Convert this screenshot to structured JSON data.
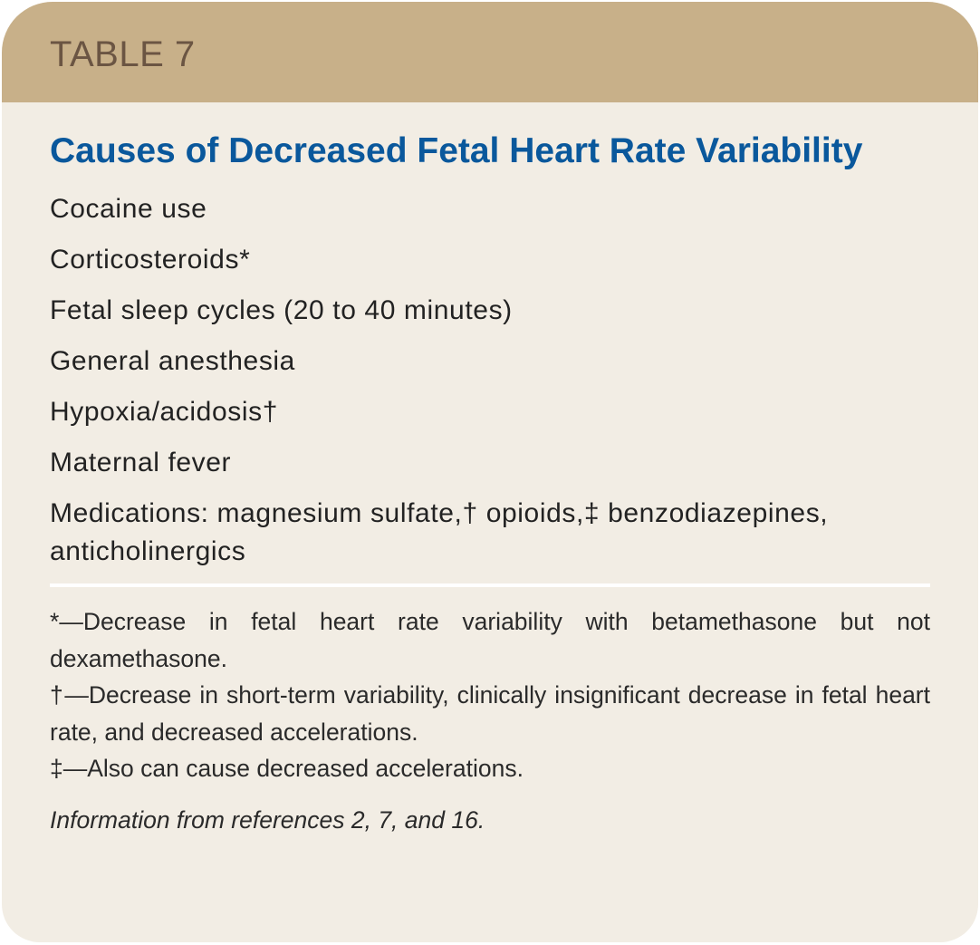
{
  "header": {
    "label": "TABLE 7"
  },
  "title": "Causes of Decreased Fetal Heart Rate Variability",
  "items": [
    "Cocaine use",
    "Corticosteroids*",
    "Fetal sleep cycles (20 to 40 minutes)",
    "General anesthesia",
    "Hypoxia/acidosis†",
    "Maternal fever",
    "Medications: magnesium sulfate,† opioids,‡ benzodiazepines, anticholinergics"
  ],
  "footnotes": [
    "*—Decrease in fetal heart rate variability with betamethasone but not dexamethasone.",
    "†—Decrease in short-term variability, clinically insignificant decrease in fetal heart rate, and decreased accelerations.",
    "‡—Also can cause decreased accelerations."
  ],
  "source": "Information from references 2, 7, and 16.",
  "colors": {
    "header_band": "#c8b089",
    "label": "#6b5543",
    "title": "#0a589c",
    "background": "#f2ede4"
  }
}
